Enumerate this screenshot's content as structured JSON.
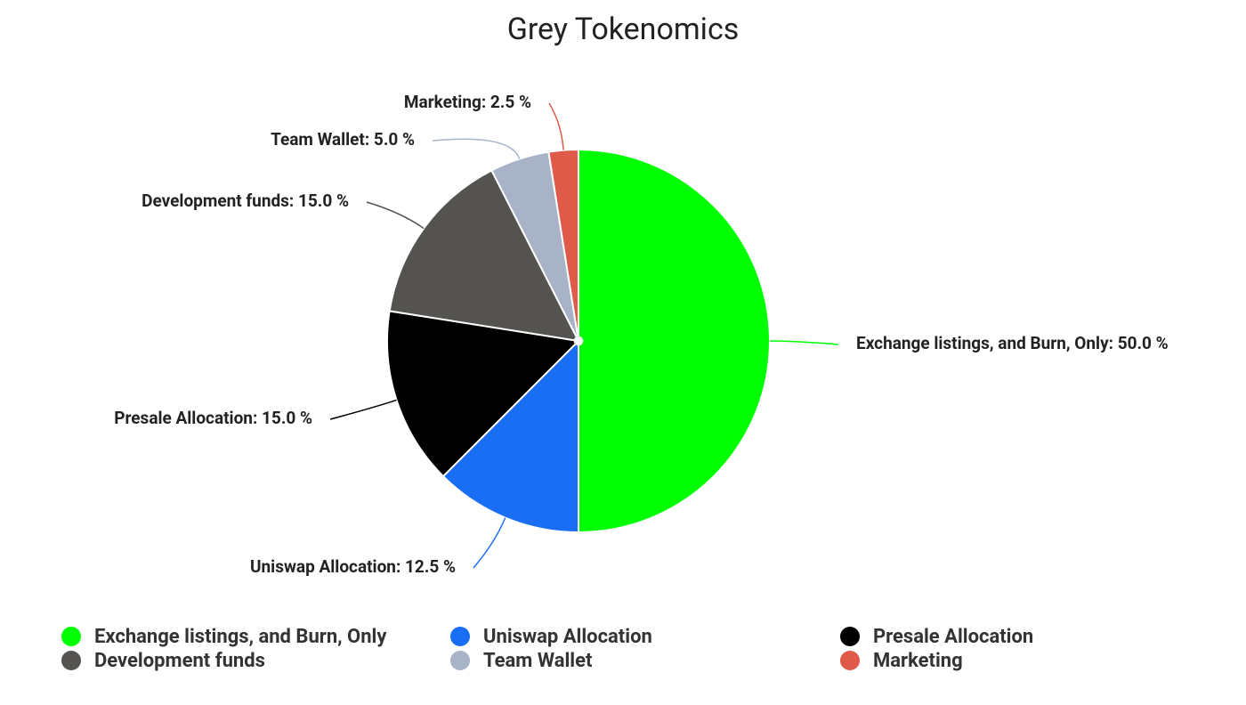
{
  "chart_data": {
    "type": "pie",
    "title": "Grey Tokenomics",
    "categories": [
      "Exchange listings, and Burn, Only",
      "Uniswap Allocation",
      "Presale Allocation",
      "Development funds",
      "Team Wallet",
      "Marketing"
    ],
    "values": [
      50,
      12.5,
      15,
      15,
      5,
      2.5
    ],
    "value_labels": [
      "Exchange listings, and Burn, Only: 50.0 %",
      "Uniswap Allocation: 12.5 %",
      "Presale Allocation: 15.0 %",
      "Development funds: 15.0 %",
      "Team Wallet: 5.0 %",
      "Marketing: 2.5 %"
    ],
    "colors": [
      "#00ff00",
      "#1a6ef5",
      "#000000",
      "#545350",
      "#a8b3c8",
      "#e05a4a"
    ],
    "legend": "bottom"
  }
}
